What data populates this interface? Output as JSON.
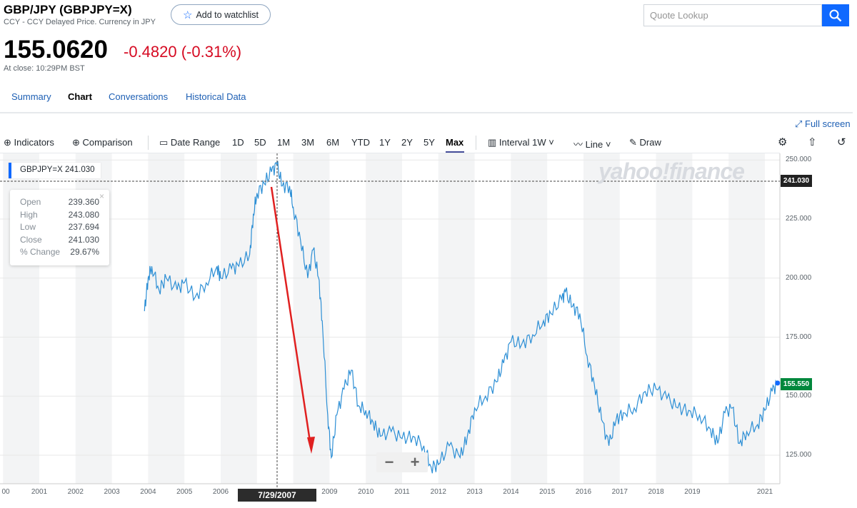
{
  "header": {
    "title": "GBP/JPY (GBPJPY=X)",
    "subtitle": "CCY - CCY Delayed Price. Currency in JPY",
    "watchlist_label": "Add to watchlist",
    "search_placeholder": "Quote Lookup"
  },
  "quote": {
    "price": "155.0620",
    "change": "-0.4820 (-0.31%)",
    "close_time": "At close: 10:29PM BST",
    "change_color": "#d60a22"
  },
  "tabs": [
    {
      "label": "Summary"
    },
    {
      "label": "Chart",
      "active": true
    },
    {
      "label": "Conversations"
    },
    {
      "label": "Historical Data"
    }
  ],
  "full_screen": "Full screen",
  "toolbar": {
    "indicators": "Indicators",
    "comparison": "Comparison",
    "date_range": "Date Range",
    "ranges": [
      "1D",
      "5D",
      "1M",
      "3M",
      "6M",
      "YTD",
      "1Y",
      "2Y",
      "5Y",
      "Max"
    ],
    "active_range": "Max",
    "interval_label": "Interval",
    "interval_value": "1W",
    "chart_type": "Line",
    "draw": "Draw"
  },
  "legend": {
    "symbol": "GBPJPY=X",
    "value": "241.030"
  },
  "tooltip": {
    "rows": [
      {
        "k": "Open",
        "v": "239.360"
      },
      {
        "k": "High",
        "v": "243.080"
      },
      {
        "k": "Low",
        "v": "237.694"
      },
      {
        "k": "Close",
        "v": "241.030"
      },
      {
        "k": "% Change",
        "v": "29.67%"
      }
    ]
  },
  "crosshair": {
    "date": "7/29/2007",
    "price": "241.030"
  },
  "last_price_tag": "155.550",
  "watermark": "yahoo!finance",
  "zoom": {
    "minus": "−",
    "plus": "+"
  },
  "colors": {
    "line": "#2d8fd5",
    "accent": "#0f69ff",
    "arrow": "#e02020",
    "last": "#00873c"
  },
  "chart_data": {
    "type": "line",
    "series": [
      {
        "x": [
          2003.9,
          2004.0,
          2004.1,
          2004.3,
          2004.5,
          2004.8,
          2005.0,
          2005.3,
          2005.6,
          2005.9,
          2006.0,
          2006.3,
          2006.5,
          2006.8,
          2006.9,
          2007.0,
          2007.2,
          2007.4,
          2007.55,
          2007.7,
          2007.9,
          2008.0,
          2008.2,
          2008.4,
          2008.55,
          2008.7,
          2008.8,
          2008.95,
          2009.05,
          2009.2,
          2009.4,
          2009.6,
          2009.8,
          2010.0,
          2010.2,
          2010.4,
          2010.7,
          2011.0,
          2011.3,
          2011.6,
          2011.8,
          2012.0,
          2012.3,
          2012.6,
          2012.8,
          2013.0,
          2013.3,
          2013.6,
          2013.8,
          2014.0,
          2014.3,
          2014.6,
          2014.9,
          2015.1,
          2015.4,
          2015.5,
          2015.7,
          2015.9,
          2016.1,
          2016.3,
          2016.5,
          2016.7,
          2016.9,
          2017.1,
          2017.4,
          2017.7,
          2018.0,
          2018.3,
          2018.6,
          2018.9,
          2019.2,
          2019.5,
          2019.7,
          2019.9,
          2020.1,
          2020.3,
          2020.5,
          2020.8,
          2021.0,
          2021.2,
          2021.35
        ],
        "y": [
          186,
          200,
          205,
          195,
          200,
          195,
          198,
          192,
          198,
          205,
          200,
          204,
          205,
          210,
          227,
          236,
          240,
          245,
          248,
          239,
          239,
          230,
          216,
          200,
          212,
          200,
          182,
          142,
          124,
          142,
          153,
          161,
          146,
          144,
          139,
          133,
          135,
          132,
          133,
          129,
          120,
          121,
          129,
          124,
          133,
          145,
          150,
          156,
          164,
          173,
          172,
          176,
          182,
          185,
          191,
          194,
          188,
          185,
          167,
          155,
          140,
          129,
          140,
          143,
          145,
          152,
          153,
          149,
          145,
          144,
          142,
          136,
          130,
          143,
          145,
          130,
          135,
          138,
          144,
          152,
          155.55
        ]
      }
    ],
    "x_tick_labels": [
      "00",
      "2001",
      "2002",
      "2003",
      "2004",
      "2005",
      "2006",
      "2009",
      "2010",
      "2011",
      "2012",
      "2013",
      "2014",
      "2015",
      "2016",
      "2017",
      "2018",
      "2019",
      "2021"
    ],
    "y_tick_labels": [
      "250.000",
      "225.000",
      "200.000",
      "175.000",
      "150.000",
      "125.000"
    ],
    "ylim": [
      116,
      254
    ],
    "grid": true
  }
}
